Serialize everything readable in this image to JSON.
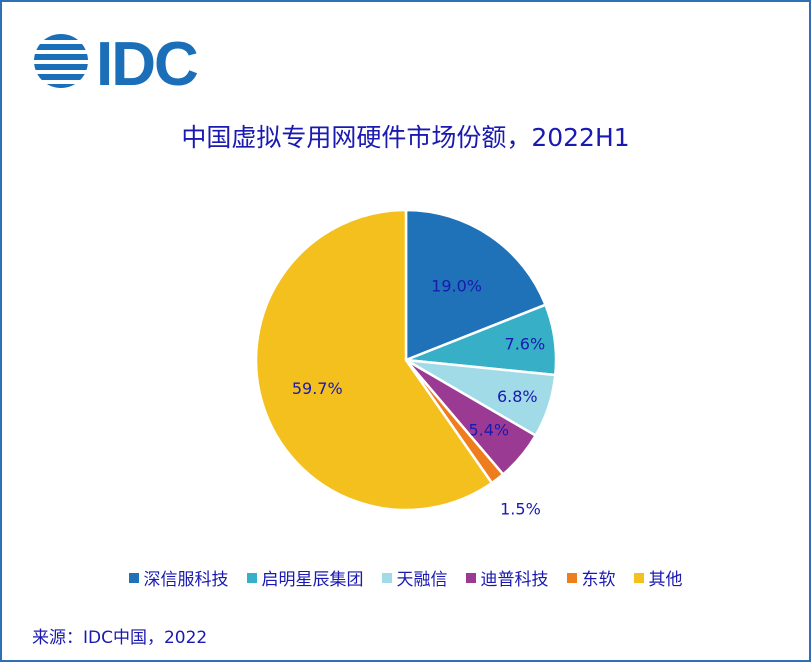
{
  "logo": {
    "text": "IDC",
    "color": "#1a6fb8"
  },
  "title": "中国虚拟专用网硬件市场份额，2022H1",
  "source": "来源：IDC中国，2022",
  "chart_data": {
    "type": "pie",
    "start_angle_deg": 90,
    "direction": "clockwise",
    "slices": [
      {
        "name": "深信服科技",
        "value": 19.0,
        "label": "19.0%",
        "color": "#1f72b8"
      },
      {
        "name": "启明星辰集团",
        "value": 7.6,
        "label": "7.6%",
        "color": "#36afc7"
      },
      {
        "name": "天融信",
        "value": 6.8,
        "label": "6.8%",
        "color": "#a2dbe8"
      },
      {
        "name": "迪普科技",
        "value": 5.4,
        "label": "5.4%",
        "color": "#9a3a93"
      },
      {
        "name": "东软",
        "value": 1.5,
        "label": "1.5%",
        "color": "#ee7d1e"
      },
      {
        "name": "其他",
        "value": 59.7,
        "label": "59.7%",
        "color": "#f4c01e"
      }
    ],
    "label_color": "#1a1ab0",
    "legend_position": "bottom"
  }
}
